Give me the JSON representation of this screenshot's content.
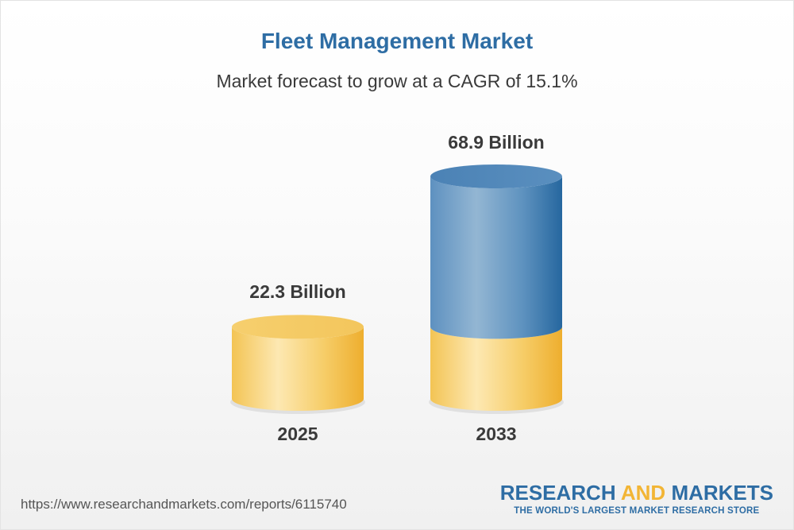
{
  "chart_data": {
    "type": "bar",
    "title": "Fleet Management Market",
    "subtitle": "Market forecast to grow at a CAGR of 15.1%",
    "categories": [
      "2025",
      "2033"
    ],
    "values": [
      22.3,
      68.9
    ],
    "value_labels": [
      "22.3 Billion",
      "68.9 Billion"
    ],
    "unit": "Billion",
    "ylim": [
      0,
      68.9
    ],
    "grid": false,
    "legend": "none",
    "colors": {
      "base": "#f2c14e",
      "growth": "#4f86b8",
      "title": "#2e6da4"
    }
  },
  "footer": {
    "url": "https://www.researchandmarkets.com/reports/6115740",
    "brand_part1": "RESEARCH ",
    "brand_part2": "AND",
    "brand_part3": " MARKETS",
    "brand_tagline": "THE WORLD'S LARGEST MARKET RESEARCH STORE"
  }
}
